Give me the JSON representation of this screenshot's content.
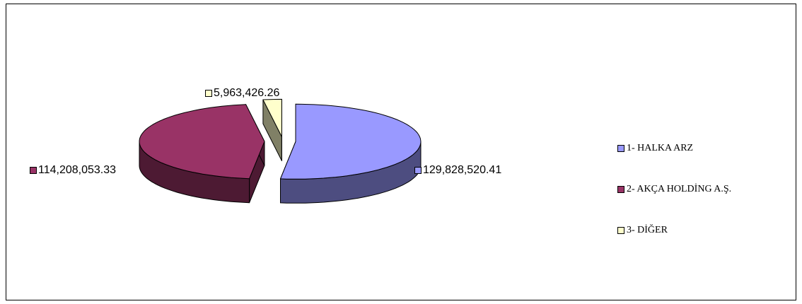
{
  "chart_data": {
    "type": "pie",
    "style": "3d-exploded",
    "title": "",
    "categories": [
      "1- HALKA ARZ",
      "2- AKÇA HOLDİNG A.Ş.",
      "3- DİĞER"
    ],
    "values": [
      129828520.41,
      114208053.33,
      5963426.26
    ],
    "value_labels": [
      "129,828,520.41",
      "114,208,053.33",
      "5,963,426.26"
    ],
    "colors": [
      "#9999ff",
      "#993366",
      "#ffffcc"
    ],
    "side_colors": [
      "#4d4d80",
      "#4d1a33",
      "#808066"
    ],
    "legend_position": "right"
  }
}
